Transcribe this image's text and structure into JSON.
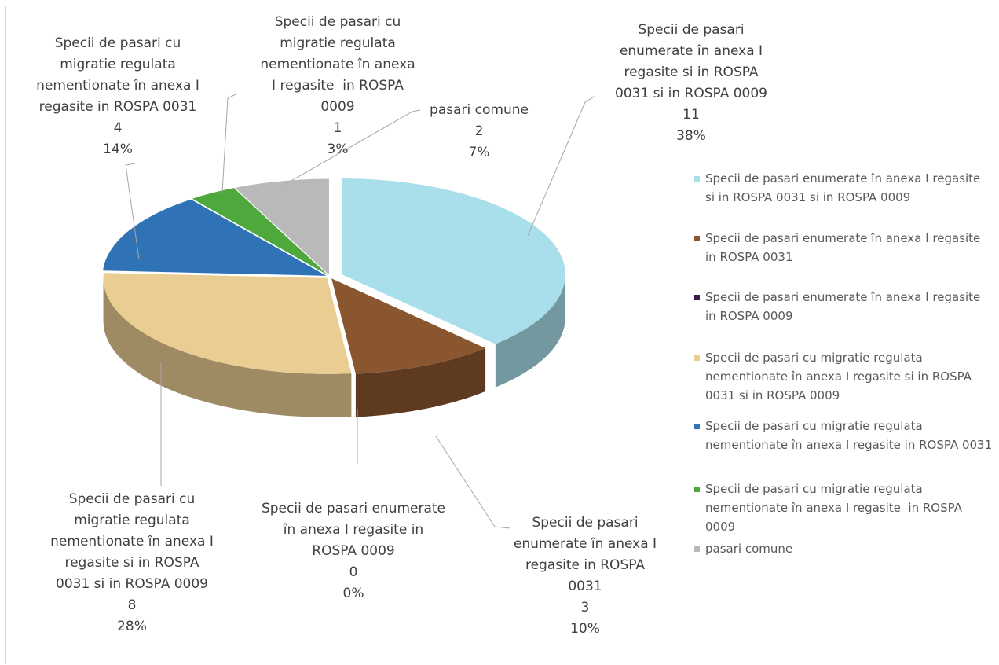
{
  "chart_data": {
    "type": "pie3d",
    "categories": [
      "Specii de pasari enumerate în anexa I regasite si in ROSPA 0031 si in ROSPA 0009",
      "Specii de pasari enumerate în anexa I regasite in ROSPA 0031",
      "Specii de pasari enumerate în anexa I regasite in ROSPA 0009",
      "Specii de pasari cu migratie regulata nementionate în anexa I regasite si in ROSPA 0031 si in ROSPA 0009",
      "Specii de pasari cu migratie regulata nementionate în anexa I regasite in ROSPA 0031",
      "Specii de pasari cu migratie regulata nementionate în anexa I regasite  in ROSPA 0009",
      "pasari comune"
    ],
    "values": [
      11,
      3,
      0,
      8,
      4,
      1,
      2
    ],
    "percentages": [
      {
        "value": 38,
        "label": "38%"
      },
      {
        "value": 10,
        "label": "10%"
      },
      {
        "value": 0,
        "label": "0%"
      },
      {
        "value": 28,
        "label": "28%"
      },
      {
        "value": 14,
        "label": "14%"
      },
      {
        "value": 3,
        "label": "3%"
      },
      {
        "value": 7,
        "label": "7%"
      }
    ],
    "colors": [
      "#a9dfea",
      "#8a5630",
      "#3d1850",
      "#e9cd92",
      "#2f72b5",
      "#4ea83c",
      "#b9b9b9"
    ],
    "legend": "right"
  }
}
